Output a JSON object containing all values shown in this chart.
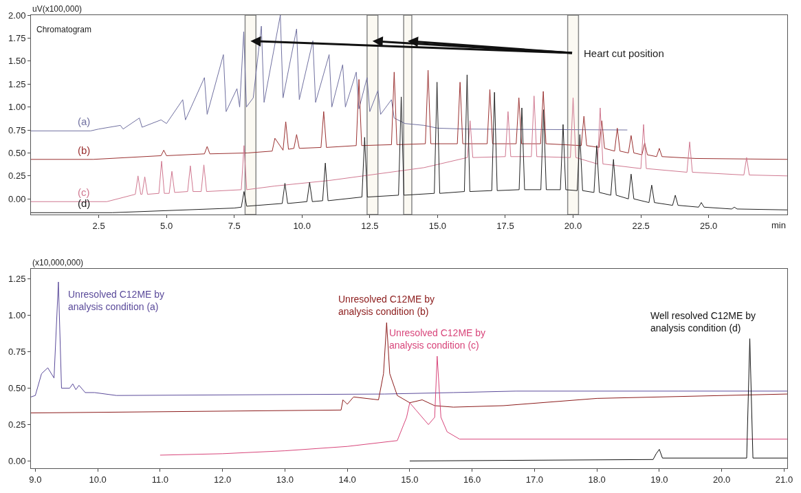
{
  "chart_data": [
    {
      "type": "line",
      "ylabel": "uV(x100,000)",
      "xlabel": "min",
      "xlim": [
        0,
        27.9
      ],
      "ylim": [
        -0.17,
        2.0
      ],
      "xticks": [
        {
          "value": 2.5,
          "label": "2.5"
        },
        {
          "value": 5,
          "label": "5.0"
        },
        {
          "value": 7.5,
          "label": "7.5"
        },
        {
          "value": 10,
          "label": "10.0"
        },
        {
          "value": 12.5,
          "label": "12.5"
        },
        {
          "value": 15,
          "label": "15.0"
        },
        {
          "value": 17.5,
          "label": "17.5"
        },
        {
          "value": 20,
          "label": "20.0"
        },
        {
          "value": 22.5,
          "label": "22.5"
        },
        {
          "value": 25,
          "label": "25.0"
        }
      ],
      "yticks": [
        {
          "value": 0,
          "label": "0.00"
        },
        {
          "value": 0.25,
          "label": "0.25"
        },
        {
          "value": 0.5,
          "label": "0.50"
        },
        {
          "value": 0.75,
          "label": "0.75"
        },
        {
          "value": 1,
          "label": "1.00"
        },
        {
          "value": 1.25,
          "label": "1.25"
        },
        {
          "value": 1.5,
          "label": "1.50"
        },
        {
          "value": 1.75,
          "label": "1.75"
        },
        {
          "value": 2,
          "label": "2.00"
        }
      ],
      "grid": false,
      "legend": false,
      "annotations": [
        "Chromatogram",
        "Heart cut position"
      ],
      "bands": [
        {
          "axis": "x",
          "from": 7.9,
          "to": 8.3,
          "label": null,
          "color": "#f8f5e6"
        },
        {
          "axis": "x",
          "from": 12.4,
          "to": 12.8,
          "label": null,
          "color": "#f8f5e6"
        },
        {
          "axis": "x",
          "from": 13.75,
          "to": 14.05,
          "label": null,
          "color": "#f8f5e6"
        },
        {
          "axis": "x",
          "from": 19.8,
          "to": 20.2,
          "label": null,
          "color": "#f8f5e6"
        }
      ],
      "series": [
        {
          "name": "(a)",
          "color": "#7070a0",
          "x": [
            0,
            2.2,
            2.5,
            3.3,
            3.4,
            4.0,
            4.1,
            4.8,
            5.0,
            5.6,
            5.7,
            6.4,
            6.5,
            7.1,
            7.2,
            7.6,
            7.7,
            7.85,
            7.95,
            8.2,
            8.5,
            8.6,
            9.2,
            9.3,
            9.8,
            9.9,
            10.4,
            10.5,
            11.0,
            11.1,
            11.5,
            11.6,
            12.0,
            12.1,
            12.4,
            12.5,
            12.8,
            12.9,
            13.3,
            13.4,
            13.8,
            14.5,
            15.0,
            16.0,
            22.0
          ],
          "values": [
            0.74,
            0.74,
            0.76,
            0.8,
            0.76,
            0.88,
            0.78,
            0.86,
            0.82,
            1.08,
            0.86,
            1.32,
            0.92,
            1.57,
            0.95,
            1.2,
            1.0,
            1.82,
            1.0,
            1.1,
            1.88,
            1.05,
            2.0,
            1.1,
            1.85,
            1.08,
            1.72,
            1.05,
            1.57,
            1.0,
            1.46,
            1.0,
            1.38,
            0.98,
            1.32,
            0.95,
            1.18,
            0.92,
            1.08,
            0.88,
            0.82,
            0.8,
            0.77,
            0.76,
            0.75
          ]
        },
        {
          "name": "(b)",
          "color": "#9a3030",
          "x": [
            0,
            2.3,
            4.8,
            4.9,
            5.0,
            6.4,
            6.5,
            6.6,
            8.0,
            8.9,
            9.0,
            9.3,
            9.4,
            9.5,
            9.7,
            9.8,
            9.9,
            10.7,
            10.8,
            10.9,
            12.0,
            12.1,
            12.2,
            13.3,
            13.4,
            13.5,
            14.55,
            14.65,
            14.75,
            15.73,
            15.83,
            15.93,
            16.83,
            16.93,
            17.03,
            17.9,
            18.0,
            18.1,
            18.8,
            18.9,
            19.0,
            20.3,
            20.4,
            20.5,
            20.96,
            21.06,
            21.16,
            21.53,
            21.63,
            21.73,
            22.04,
            22.14,
            22.24,
            22.54,
            22.64,
            22.74,
            23.08,
            23.18,
            23.28,
            24.5,
            27.9
          ],
          "values": [
            0.43,
            0.43,
            0.47,
            0.53,
            0.47,
            0.49,
            0.57,
            0.49,
            0.5,
            0.52,
            0.66,
            0.53,
            0.84,
            0.54,
            0.55,
            0.7,
            0.55,
            0.56,
            0.95,
            0.56,
            0.58,
            1.3,
            0.58,
            0.59,
            1.38,
            0.59,
            0.6,
            1.4,
            0.6,
            0.6,
            1.27,
            0.6,
            0.6,
            1.19,
            0.6,
            0.6,
            1.1,
            0.6,
            0.6,
            1.17,
            0.6,
            0.58,
            0.9,
            0.58,
            0.56,
            0.85,
            0.55,
            0.52,
            0.77,
            0.52,
            0.5,
            0.69,
            0.5,
            0.48,
            0.61,
            0.48,
            0.46,
            0.55,
            0.46,
            0.44,
            0.43
          ]
        },
        {
          "name": "(c)",
          "color": "#d07890",
          "x": [
            0,
            2.8,
            3.85,
            3.95,
            4.05,
            4.1,
            4.2,
            4.3,
            4.72,
            4.82,
            4.92,
            5.1,
            5.2,
            5.3,
            5.78,
            5.88,
            5.98,
            6.28,
            6.38,
            6.48,
            7.76,
            7.86,
            7.96,
            9.0,
            11.0,
            13.5,
            14.5,
            16.1,
            16.2,
            16.3,
            17.5,
            17.6,
            17.7,
            18.46,
            18.56,
            18.66,
            19.9,
            20.0,
            20.1,
            20.9,
            21.0,
            21.1,
            22.5,
            22.6,
            22.7,
            24.2,
            24.3,
            24.4,
            26.3,
            26.4,
            26.5,
            27.9
          ],
          "values": [
            -0.03,
            -0.03,
            0.05,
            0.25,
            0.05,
            0.05,
            0.24,
            0.05,
            0.06,
            0.41,
            0.06,
            0.06,
            0.3,
            0.07,
            0.08,
            0.36,
            0.08,
            0.08,
            0.37,
            0.08,
            0.1,
            0.58,
            0.1,
            0.14,
            0.2,
            0.3,
            0.34,
            0.45,
            0.85,
            0.45,
            0.46,
            0.95,
            0.46,
            0.46,
            1.12,
            0.46,
            0.45,
            1.1,
            0.45,
            0.38,
            0.99,
            0.38,
            0.33,
            0.81,
            0.33,
            0.29,
            0.62,
            0.29,
            0.26,
            0.45,
            0.26,
            0.25
          ]
        },
        {
          "name": "(d)",
          "color": "#202020",
          "x": [
            0,
            3.0,
            7.5,
            7.76,
            7.86,
            7.96,
            9.27,
            9.37,
            9.47,
            10.18,
            10.28,
            10.38,
            10.76,
            10.86,
            10.96,
            12.21,
            12.31,
            12.41,
            13.56,
            13.66,
            13.76,
            14.88,
            14.98,
            15.08,
            15.99,
            16.09,
            16.19,
            17.0,
            17.1,
            17.2,
            18.01,
            18.11,
            18.21,
            18.81,
            18.91,
            19.01,
            19.53,
            19.63,
            19.73,
            20.15,
            20.25,
            20.35,
            20.77,
            20.87,
            20.97,
            21.39,
            21.49,
            21.59,
            22.04,
            22.14,
            22.24,
            22.8,
            22.9,
            23.0,
            23.67,
            23.77,
            23.87,
            24.63,
            24.73,
            24.83,
            25.85,
            25.95,
            26.05,
            27.9
          ],
          "values": [
            -0.15,
            -0.15,
            -0.1,
            -0.09,
            0.08,
            -0.08,
            -0.05,
            0.17,
            -0.05,
            -0.03,
            0.18,
            -0.03,
            -0.02,
            0.39,
            -0.02,
            0.02,
            0.67,
            0.02,
            0.04,
            1.11,
            0.04,
            0.06,
            1.27,
            0.06,
            0.08,
            1.35,
            0.08,
            0.09,
            1.16,
            0.09,
            0.1,
            0.99,
            0.1,
            0.1,
            0.97,
            0.1,
            0.1,
            0.81,
            0.1,
            0.09,
            0.7,
            0.09,
            0.07,
            0.58,
            0.07,
            0.04,
            0.43,
            0.04,
            0.0,
            0.27,
            0.0,
            -0.04,
            0.15,
            -0.04,
            -0.07,
            0.04,
            -0.07,
            -0.09,
            -0.04,
            -0.09,
            -0.11,
            -0.09,
            -0.11,
            -0.12
          ]
        }
      ]
    },
    {
      "type": "line",
      "ylabel": "(x10,000,000)",
      "xlim": [
        8.93,
        21.05
      ],
      "ylim": [
        -0.05,
        1.32
      ],
      "xticks": [
        {
          "value": 9,
          "label": "9.0"
        },
        {
          "value": 10,
          "label": "10.0"
        },
        {
          "value": 11,
          "label": "11.0"
        },
        {
          "value": 12,
          "label": "12.0"
        },
        {
          "value": 13,
          "label": "13.0"
        },
        {
          "value": 14,
          "label": "14.0"
        },
        {
          "value": 15,
          "label": "15.0"
        },
        {
          "value": 16,
          "label": "16.0"
        },
        {
          "value": 17,
          "label": "17.0"
        },
        {
          "value": 18,
          "label": "18.0"
        },
        {
          "value": 19,
          "label": "19.0"
        },
        {
          "value": 20,
          "label": "20.0"
        },
        {
          "value": 21,
          "label": "21.0"
        }
      ],
      "yticks": [
        {
          "value": 0,
          "label": "0.00"
        },
        {
          "value": 0.25,
          "label": "0.25"
        },
        {
          "value": 0.5,
          "label": "0.50"
        },
        {
          "value": 0.75,
          "label": "0.75"
        },
        {
          "value": 1,
          "label": "1.00"
        },
        {
          "value": 1.25,
          "label": "1.25"
        }
      ],
      "grid": false,
      "legend": false,
      "series": [
        {
          "name": "Unresolved C12ME by\nanalysis condition (a)",
          "color": "#5a4a9a",
          "x": [
            8.93,
            9.0,
            9.1,
            9.2,
            9.3,
            9.37,
            9.42,
            9.55,
            9.6,
            9.65,
            9.7,
            9.8,
            9.95,
            10.3,
            14.6,
            15.7,
            16.7,
            17.8,
            19.3,
            21.05
          ],
          "values": [
            0.44,
            0.45,
            0.6,
            0.64,
            0.57,
            1.23,
            0.5,
            0.5,
            0.53,
            0.49,
            0.52,
            0.47,
            0.47,
            0.45,
            0.46,
            0.47,
            0.48,
            0.48,
            0.48,
            0.48
          ]
        },
        {
          "name": "Unresolved C12ME by\nanalysis condition (b)",
          "color": "#8b1a1a",
          "x": [
            8.93,
            13.9,
            13.93,
            14.0,
            14.1,
            14.5,
            14.58,
            14.63,
            14.68,
            14.8,
            15.0,
            15.2,
            15.4,
            15.7,
            16.5,
            18.0,
            21.05
          ],
          "values": [
            0.33,
            0.35,
            0.42,
            0.39,
            0.44,
            0.42,
            0.6,
            0.95,
            0.6,
            0.45,
            0.4,
            0.42,
            0.38,
            0.37,
            0.38,
            0.43,
            0.46
          ]
        },
        {
          "name": "Unresolved C12ME by\nanalysis condition (c)",
          "color": "#d8457a",
          "x": [
            11.0,
            12.0,
            13.0,
            14.0,
            14.8,
            14.95,
            15.0,
            15.1,
            15.3,
            15.4,
            15.44,
            15.5,
            15.6,
            15.8,
            21.05
          ],
          "values": [
            0.04,
            0.05,
            0.07,
            0.1,
            0.14,
            0.3,
            0.4,
            0.35,
            0.25,
            0.3,
            0.72,
            0.3,
            0.2,
            0.15,
            0.15
          ]
        },
        {
          "name": "Well resolved C12ME by\nanalysis condition (d)",
          "color": "#111111",
          "x": [
            15.0,
            18.9,
            18.95,
            19.0,
            19.05,
            20.4,
            20.45,
            20.5,
            21.05
          ],
          "values": [
            0.0,
            0.01,
            0.05,
            0.08,
            0.02,
            0.02,
            0.84,
            0.02,
            0.02
          ]
        }
      ]
    }
  ]
}
